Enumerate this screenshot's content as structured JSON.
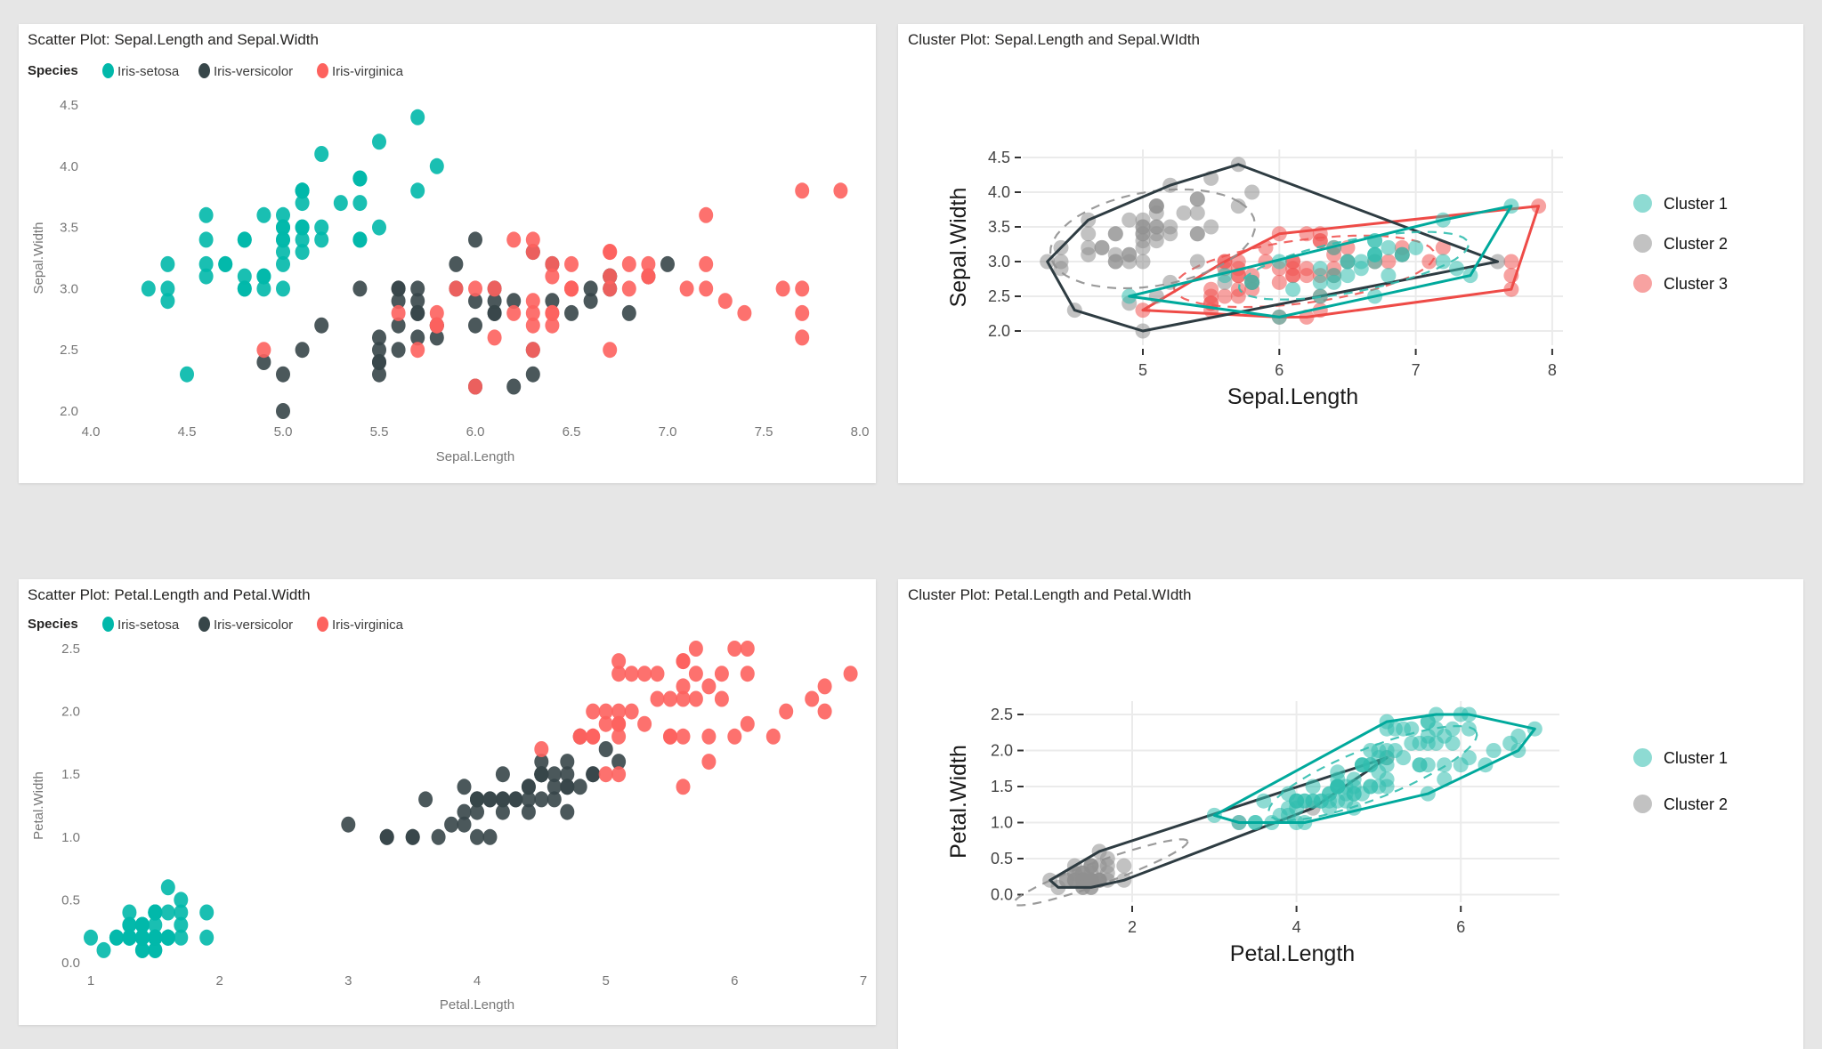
{
  "page": {
    "background": "#e6e6e6",
    "panel_bg": "#ffffff",
    "grid_color": "#ebebeb",
    "tick_color": "#333333",
    "pbi_text": "#777777",
    "title_color": "#252423"
  },
  "species": [
    {
      "name": "Iris-setosa",
      "color": "#01B8AA"
    },
    {
      "name": "Iris-versicolor",
      "color": "#374649"
    },
    {
      "name": "Iris-virginica",
      "color": "#FD625E"
    }
  ],
  "iris": {
    "sepal_length": [
      5.1,
      4.9,
      4.7,
      4.6,
      5.0,
      5.4,
      4.6,
      5.0,
      4.4,
      4.9,
      5.4,
      4.8,
      4.8,
      4.3,
      5.8,
      5.7,
      5.4,
      5.1,
      5.7,
      5.1,
      5.4,
      5.1,
      4.6,
      5.1,
      4.8,
      5.0,
      5.0,
      5.2,
      5.2,
      4.7,
      4.8,
      5.4,
      5.2,
      5.5,
      4.9,
      5.0,
      5.5,
      4.9,
      4.4,
      5.1,
      5.0,
      4.5,
      4.4,
      5.0,
      5.1,
      4.8,
      5.1,
      4.6,
      5.3,
      5.0,
      7.0,
      6.4,
      6.9,
      5.5,
      6.5,
      5.7,
      6.3,
      4.9,
      6.6,
      5.2,
      5.0,
      5.9,
      6.0,
      6.1,
      5.6,
      6.7,
      5.6,
      5.8,
      6.2,
      5.6,
      5.9,
      6.1,
      6.3,
      6.1,
      6.4,
      6.6,
      6.8,
      6.7,
      6.0,
      5.7,
      5.5,
      5.5,
      5.8,
      6.0,
      5.4,
      6.0,
      6.7,
      6.3,
      5.6,
      5.5,
      5.5,
      6.1,
      5.8,
      5.0,
      5.6,
      5.7,
      5.7,
      6.2,
      5.1,
      5.7,
      6.3,
      5.8,
      7.1,
      6.3,
      6.5,
      7.6,
      4.9,
      7.3,
      6.7,
      7.2,
      6.5,
      6.4,
      6.8,
      5.7,
      5.8,
      6.4,
      6.5,
      7.7,
      7.7,
      6.0,
      6.9,
      5.6,
      7.7,
      6.3,
      6.7,
      7.2,
      6.2,
      6.1,
      6.4,
      7.2,
      7.4,
      7.9,
      6.4,
      6.3,
      6.1,
      7.7,
      6.3,
      6.4,
      6.0,
      6.9,
      6.7,
      6.9,
      5.8,
      6.8,
      6.7,
      6.7,
      6.3,
      6.5,
      6.2,
      5.9
    ],
    "sepal_width": [
      3.5,
      3.0,
      3.2,
      3.1,
      3.6,
      3.9,
      3.4,
      3.4,
      2.9,
      3.1,
      3.7,
      3.4,
      3.0,
      3.0,
      4.0,
      4.4,
      3.9,
      3.5,
      3.8,
      3.8,
      3.4,
      3.7,
      3.6,
      3.3,
      3.4,
      3.0,
      3.4,
      3.5,
      3.4,
      3.2,
      3.1,
      3.4,
      4.1,
      4.2,
      3.1,
      3.2,
      3.5,
      3.6,
      3.0,
      3.4,
      3.5,
      2.3,
      3.2,
      3.5,
      3.8,
      3.0,
      3.8,
      3.2,
      3.7,
      3.3,
      3.2,
      3.2,
      3.1,
      2.3,
      2.8,
      2.8,
      3.3,
      2.4,
      2.9,
      2.7,
      2.0,
      3.0,
      2.2,
      2.9,
      2.9,
      3.1,
      3.0,
      2.7,
      2.2,
      2.5,
      3.2,
      2.8,
      2.5,
      2.8,
      2.9,
      3.0,
      2.8,
      3.0,
      2.9,
      2.6,
      2.4,
      2.4,
      2.7,
      2.7,
      3.0,
      3.4,
      3.1,
      2.3,
      3.0,
      2.5,
      2.6,
      3.0,
      2.6,
      2.3,
      2.7,
      3.0,
      2.9,
      2.9,
      2.5,
      2.8,
      3.3,
      2.7,
      3.0,
      2.9,
      3.0,
      3.0,
      2.5,
      2.9,
      2.5,
      3.6,
      3.2,
      2.7,
      3.0,
      2.5,
      2.8,
      3.2,
      3.0,
      3.8,
      2.6,
      2.2,
      3.2,
      2.8,
      2.8,
      2.7,
      3.3,
      3.2,
      2.8,
      3.0,
      2.8,
      3.0,
      2.8,
      3.8,
      2.8,
      2.8,
      2.6,
      3.0,
      3.4,
      3.1,
      3.0,
      3.1,
      3.1,
      3.1,
      2.7,
      3.2,
      3.3,
      3.0,
      2.5,
      3.0,
      3.4,
      3.0
    ],
    "petal_length": [
      1.4,
      1.4,
      1.3,
      1.5,
      1.4,
      1.7,
      1.4,
      1.5,
      1.4,
      1.5,
      1.5,
      1.6,
      1.4,
      1.1,
      1.2,
      1.5,
      1.3,
      1.4,
      1.7,
      1.5,
      1.7,
      1.5,
      1.0,
      1.7,
      1.9,
      1.6,
      1.6,
      1.5,
      1.4,
      1.6,
      1.6,
      1.5,
      1.5,
      1.4,
      1.5,
      1.2,
      1.3,
      1.4,
      1.3,
      1.5,
      1.3,
      1.3,
      1.3,
      1.6,
      1.9,
      1.4,
      1.6,
      1.4,
      1.5,
      1.4,
      4.7,
      4.5,
      4.9,
      4.0,
      4.6,
      4.5,
      4.7,
      3.3,
      4.6,
      3.9,
      3.5,
      4.2,
      4.0,
      4.7,
      3.6,
      4.4,
      4.5,
      4.1,
      4.5,
      3.9,
      4.8,
      4.0,
      4.9,
      4.7,
      4.3,
      4.4,
      4.8,
      5.0,
      4.5,
      3.5,
      3.8,
      3.7,
      3.9,
      5.1,
      4.5,
      4.5,
      4.7,
      4.4,
      4.1,
      4.0,
      4.4,
      4.6,
      4.0,
      3.3,
      4.2,
      4.2,
      4.2,
      4.3,
      3.0,
      4.1,
      6.0,
      5.1,
      5.9,
      5.6,
      5.8,
      6.6,
      4.5,
      6.3,
      5.8,
      6.1,
      5.1,
      5.3,
      5.5,
      5.0,
      5.1,
      5.3,
      5.5,
      6.7,
      6.9,
      5.0,
      5.7,
      4.9,
      6.7,
      4.9,
      5.7,
      6.0,
      4.8,
      4.9,
      5.6,
      5.8,
      6.1,
      6.4,
      5.6,
      5.1,
      5.6,
      6.1,
      5.6,
      5.5,
      4.8,
      5.4,
      5.6,
      5.1,
      5.1,
      5.9,
      5.7,
      5.2,
      5.0,
      5.2,
      5.4,
      5.1
    ],
    "petal_width": [
      0.2,
      0.2,
      0.2,
      0.2,
      0.2,
      0.4,
      0.3,
      0.2,
      0.2,
      0.1,
      0.2,
      0.2,
      0.1,
      0.1,
      0.2,
      0.4,
      0.4,
      0.3,
      0.3,
      0.3,
      0.2,
      0.4,
      0.2,
      0.5,
      0.2,
      0.2,
      0.4,
      0.2,
      0.2,
      0.2,
      0.2,
      0.4,
      0.1,
      0.2,
      0.2,
      0.2,
      0.2,
      0.1,
      0.2,
      0.2,
      0.3,
      0.3,
      0.2,
      0.6,
      0.4,
      0.3,
      0.2,
      0.2,
      0.2,
      0.2,
      1.4,
      1.5,
      1.5,
      1.3,
      1.5,
      1.3,
      1.6,
      1.0,
      1.3,
      1.4,
      1.0,
      1.5,
      1.0,
      1.4,
      1.3,
      1.4,
      1.5,
      1.0,
      1.5,
      1.1,
      1.8,
      1.3,
      1.5,
      1.2,
      1.3,
      1.4,
      1.4,
      1.7,
      1.5,
      1.0,
      1.1,
      1.0,
      1.2,
      1.6,
      1.5,
      1.6,
      1.5,
      1.3,
      1.3,
      1.3,
      1.2,
      1.4,
      1.2,
      1.0,
      1.3,
      1.2,
      1.3,
      1.3,
      1.1,
      1.3,
      2.5,
      1.9,
      2.1,
      1.8,
      2.2,
      2.1,
      1.7,
      1.8,
      1.8,
      2.5,
      2.0,
      1.9,
      2.1,
      2.0,
      2.4,
      2.3,
      1.8,
      2.2,
      2.3,
      1.5,
      2.3,
      2.0,
      2.0,
      1.8,
      2.1,
      1.8,
      1.8,
      1.8,
      2.1,
      1.6,
      1.9,
      2.0,
      2.2,
      1.5,
      1.4,
      2.3,
      2.4,
      1.8,
      1.8,
      2.1,
      2.4,
      2.3,
      1.9,
      2.3,
      2.5,
      2.3,
      1.9,
      2.0,
      2.3,
      1.8
    ],
    "species_index": [
      0,
      0,
      0,
      0,
      0,
      0,
      0,
      0,
      0,
      0,
      0,
      0,
      0,
      0,
      0,
      0,
      0,
      0,
      0,
      0,
      0,
      0,
      0,
      0,
      0,
      0,
      0,
      0,
      0,
      0,
      0,
      0,
      0,
      0,
      0,
      0,
      0,
      0,
      0,
      0,
      0,
      0,
      0,
      0,
      0,
      0,
      0,
      0,
      0,
      0,
      1,
      1,
      1,
      1,
      1,
      1,
      1,
      1,
      1,
      1,
      1,
      1,
      1,
      1,
      1,
      1,
      1,
      1,
      1,
      1,
      1,
      1,
      1,
      1,
      1,
      1,
      1,
      1,
      1,
      1,
      1,
      1,
      1,
      1,
      1,
      1,
      1,
      1,
      1,
      1,
      1,
      1,
      1,
      1,
      1,
      1,
      1,
      1,
      1,
      1,
      2,
      2,
      2,
      2,
      2,
      2,
      2,
      2,
      2,
      2,
      2,
      2,
      2,
      2,
      2,
      2,
      2,
      2,
      2,
      2,
      2,
      2,
      2,
      2,
      2,
      2,
      2,
      2,
      2,
      2,
      2,
      2,
      2,
      2,
      2,
      2,
      2,
      2,
      2,
      2,
      2,
      2,
      2,
      2,
      2,
      2,
      2,
      2,
      2,
      2
    ]
  },
  "chart_data": [
    {
      "type": "scatter",
      "title": "Scatter Plot: Sepal.Length and Sepal.Width",
      "legend_title": "Species",
      "x_field": "sepal_length",
      "y_field": "sepal_width",
      "xlabel": "Sepal.Length",
      "ylabel": "Sepal.Width",
      "x_ticks": [
        "4.0",
        "4.5",
        "5.0",
        "5.5",
        "6.0",
        "6.5",
        "7.0",
        "7.5",
        "8.0"
      ],
      "y_ticks": [
        "4.5",
        "4.0",
        "3.5",
        "3.0",
        "2.5",
        "2.0"
      ],
      "xlim": [
        4.0,
        8.0
      ],
      "ylim": [
        2.0,
        4.5
      ],
      "grid": false,
      "legend_position": "top"
    },
    {
      "type": "cluster",
      "title": "Cluster Plot: Sepal.Length and Sepal.WIdth",
      "x_field": "sepal_length",
      "y_field": "sepal_width",
      "xlabel": "Sepal.Length",
      "ylabel": "Sepal.Width",
      "x_ticks": [
        "5",
        "6",
        "7",
        "8"
      ],
      "y_ticks": [
        "4.5",
        "4.0",
        "3.5",
        "3.0",
        "2.5",
        "2.0"
      ],
      "xlim": [
        4.1,
        8.1
      ],
      "ylim": [
        1.9,
        4.6
      ],
      "grid": true,
      "legend_position": "right",
      "assignments": "22222222222222222222222222222222222222222222222222131313321223333133333333311133333323133333332333233131121111313331113131311333111333133311131113133",
      "clusters": [
        {
          "label": "Cluster 1",
          "id": "1",
          "point_color": "#32BEAF",
          "line_color": "#00A99C"
        },
        {
          "label": "Cluster 2",
          "id": "2",
          "point_color": "#909090",
          "line_color": "#2E3C42"
        },
        {
          "label": "Cluster 3",
          "id": "3",
          "point_color": "#F05654",
          "line_color": "#EE4B47"
        }
      ]
    },
    {
      "type": "scatter",
      "title": "Scatter Plot: Petal.Length and Petal.Width",
      "legend_title": "Species",
      "x_field": "petal_length",
      "y_field": "petal_width",
      "xlabel": "Petal.Length",
      "ylabel": "Petal.Width",
      "x_ticks": [
        "1",
        "2",
        "3",
        "4",
        "5",
        "6",
        "7"
      ],
      "y_ticks": [
        "2.5",
        "2.0",
        "1.5",
        "1.0",
        "0.5",
        "0.0"
      ],
      "xlim": [
        1.0,
        7.0
      ],
      "ylim": [
        0.0,
        2.5
      ],
      "grid": false,
      "legend_position": "top"
    },
    {
      "type": "cluster",
      "title": "Cluster Plot: Petal.Length and Petal.WIdth",
      "x_field": "petal_length",
      "y_field": "petal_width",
      "xlabel": "Petal.Length",
      "ylabel": "Petal.Width",
      "x_ticks": [
        "2",
        "4",
        "6"
      ],
      "y_ticks": [
        "2.5",
        "2.0",
        "1.5",
        "1.0",
        "0.5",
        "0.0"
      ],
      "xlim": [
        0.7,
        7.2
      ],
      "ylim": [
        -0.05,
        2.6
      ],
      "grid": true,
      "legend_position": "right",
      "assignments": "222222222222222222222222222222222222222222222222221111111211111111111111111111111111111111111112111112111111111111111111111111111111111111111111111111",
      "clusters": [
        {
          "label": "Cluster 1",
          "id": "1",
          "point_color": "#32BEAF",
          "line_color": "#00A99C"
        },
        {
          "label": "Cluster 2",
          "id": "2",
          "point_color": "#909090",
          "line_color": "#2E3C42"
        }
      ]
    }
  ]
}
